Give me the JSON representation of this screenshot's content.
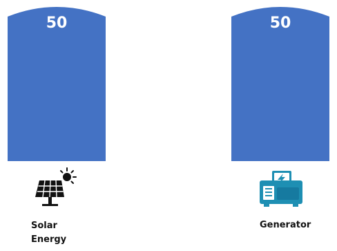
{
  "chart_data": {
    "type": "bar",
    "categories": [
      "Solar Energy",
      "Generator"
    ],
    "values": [
      50,
      50
    ],
    "data_labels": [
      "50",
      "50"
    ],
    "ylim": [
      0,
      50
    ],
    "grid": false,
    "legend": "none",
    "bar_color": "#4472C4",
    "bar_shape": "rounded-top",
    "icons": [
      "solar-panel-icon",
      "generator-icon"
    ]
  },
  "labels": {
    "solar": {
      "line1": "Solar",
      "line2": "Energy"
    },
    "generator": "Generator"
  },
  "colors": {
    "bar": "#4472C4",
    "value_text": "#FFFFFF",
    "generator_icon": "#1E8FB3",
    "solar_icon": "#111111"
  }
}
